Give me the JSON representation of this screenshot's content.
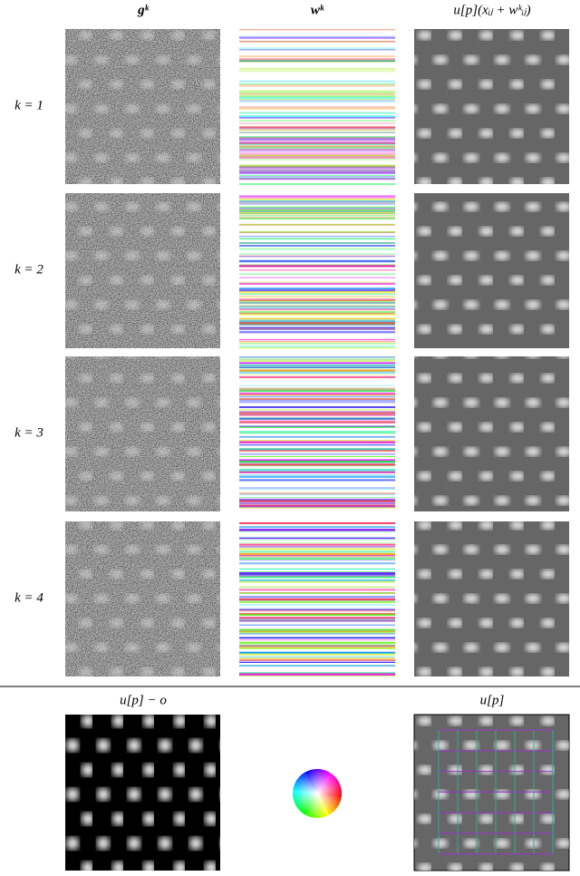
{
  "headers": [
    "gᵏ",
    "wᵏ",
    "u[p](xᵢⱼ + wᵏᵢⱼ)"
  ],
  "rows": [
    "k = 1",
    "k = 2",
    "k = 3",
    "k = 4"
  ],
  "bottom": {
    "left": "u[p] − o",
    "right": "u[p]"
  }
}
